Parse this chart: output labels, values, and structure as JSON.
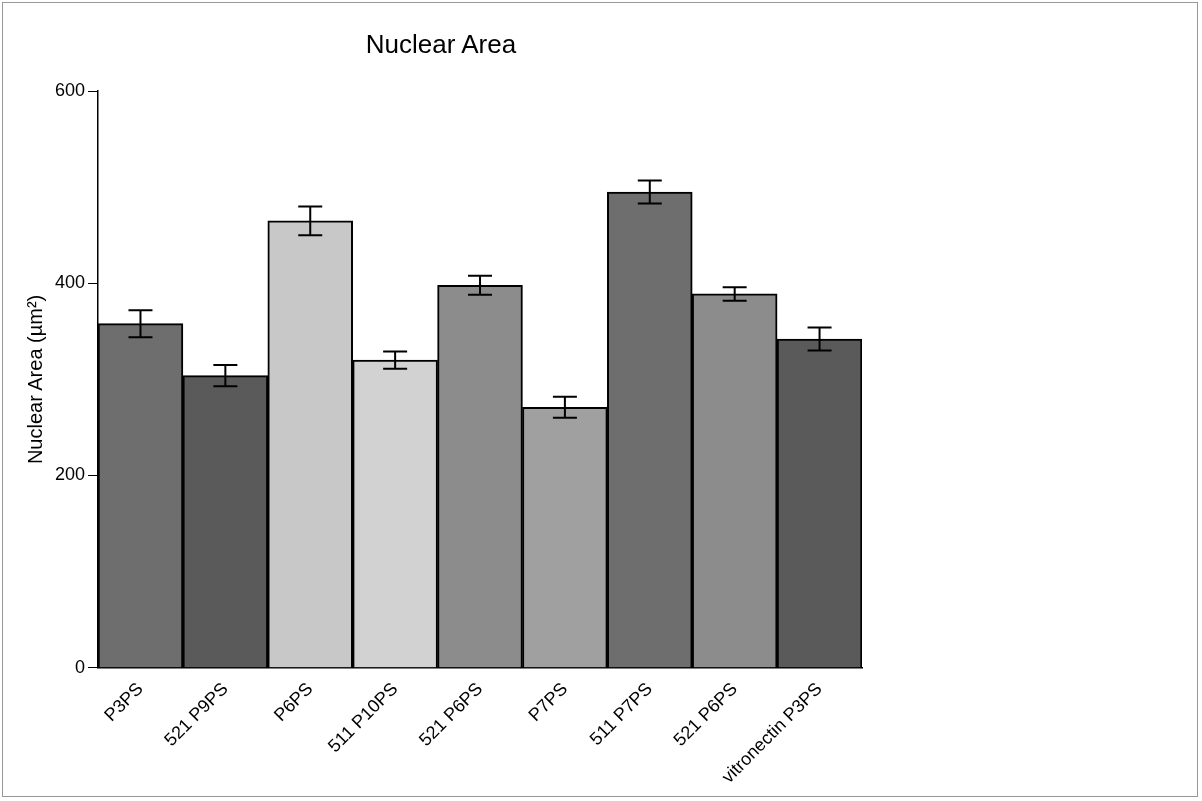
{
  "chart_data": {
    "type": "bar",
    "title": "Nuclear Area",
    "ylabel": "Nuclear Area (µm²)",
    "categories": [
      "P3PS",
      "521 P9PS",
      "P6PS",
      "511 P10PS",
      "521 P6PS",
      "P7PS",
      "511 P7PS",
      "521 P6PS",
      "vitronectin P3PS"
    ],
    "values": [
      358,
      304,
      465,
      320,
      398,
      271,
      495,
      389,
      342
    ],
    "errors": [
      14,
      11,
      15,
      9,
      10,
      11,
      12,
      7,
      12
    ],
    "colors": [
      "#6e6e6e",
      "#5a5a5a",
      "#c8c8c8",
      "#d2d2d2",
      "#8c8c8c",
      "#a0a0a0",
      "#6e6e6e",
      "#8c8c8c",
      "#5a5a5a"
    ],
    "ylim": [
      0,
      600
    ],
    "yticks": [
      0,
      200,
      400,
      600
    ],
    "grid": false,
    "legend": false
  }
}
